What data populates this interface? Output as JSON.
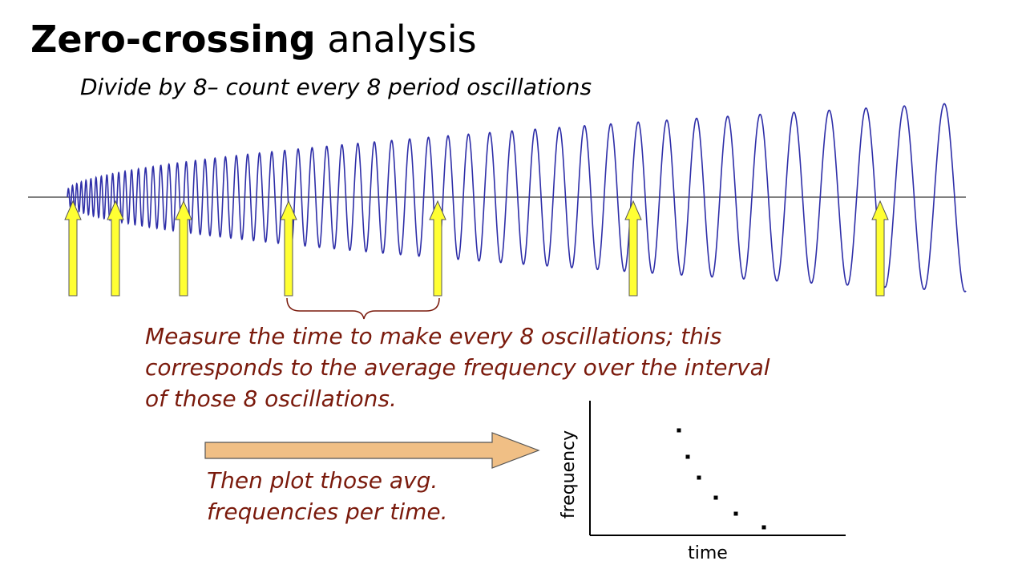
{
  "slide": {
    "title_bold": "Zero-crossing",
    "title_rest": "analysis",
    "subtitle": "Divide by 8– count every 8 period oscillations",
    "note_lines": [
      "Measure the time to make every 8 oscillations; this",
      "corresponds to the average frequency over the interval",
      "of those 8 oscillations."
    ],
    "note2_lines": [
      "Then plot those avg.",
      "frequencies per time."
    ]
  },
  "colors": {
    "wave": "#2e2ea8",
    "marker_fill": "#ffff33",
    "marker_stroke": "#555555",
    "brace": "#7a1a0c",
    "big_arrow_fill": "#f0bf85",
    "big_arrow_stroke": "#555555",
    "note_text": "#7a1a0c"
  },
  "mini_plot": {
    "xlabel": "time",
    "ylabel": "frequency",
    "point_count": 6
  },
  "markers": {
    "count": 7
  }
}
